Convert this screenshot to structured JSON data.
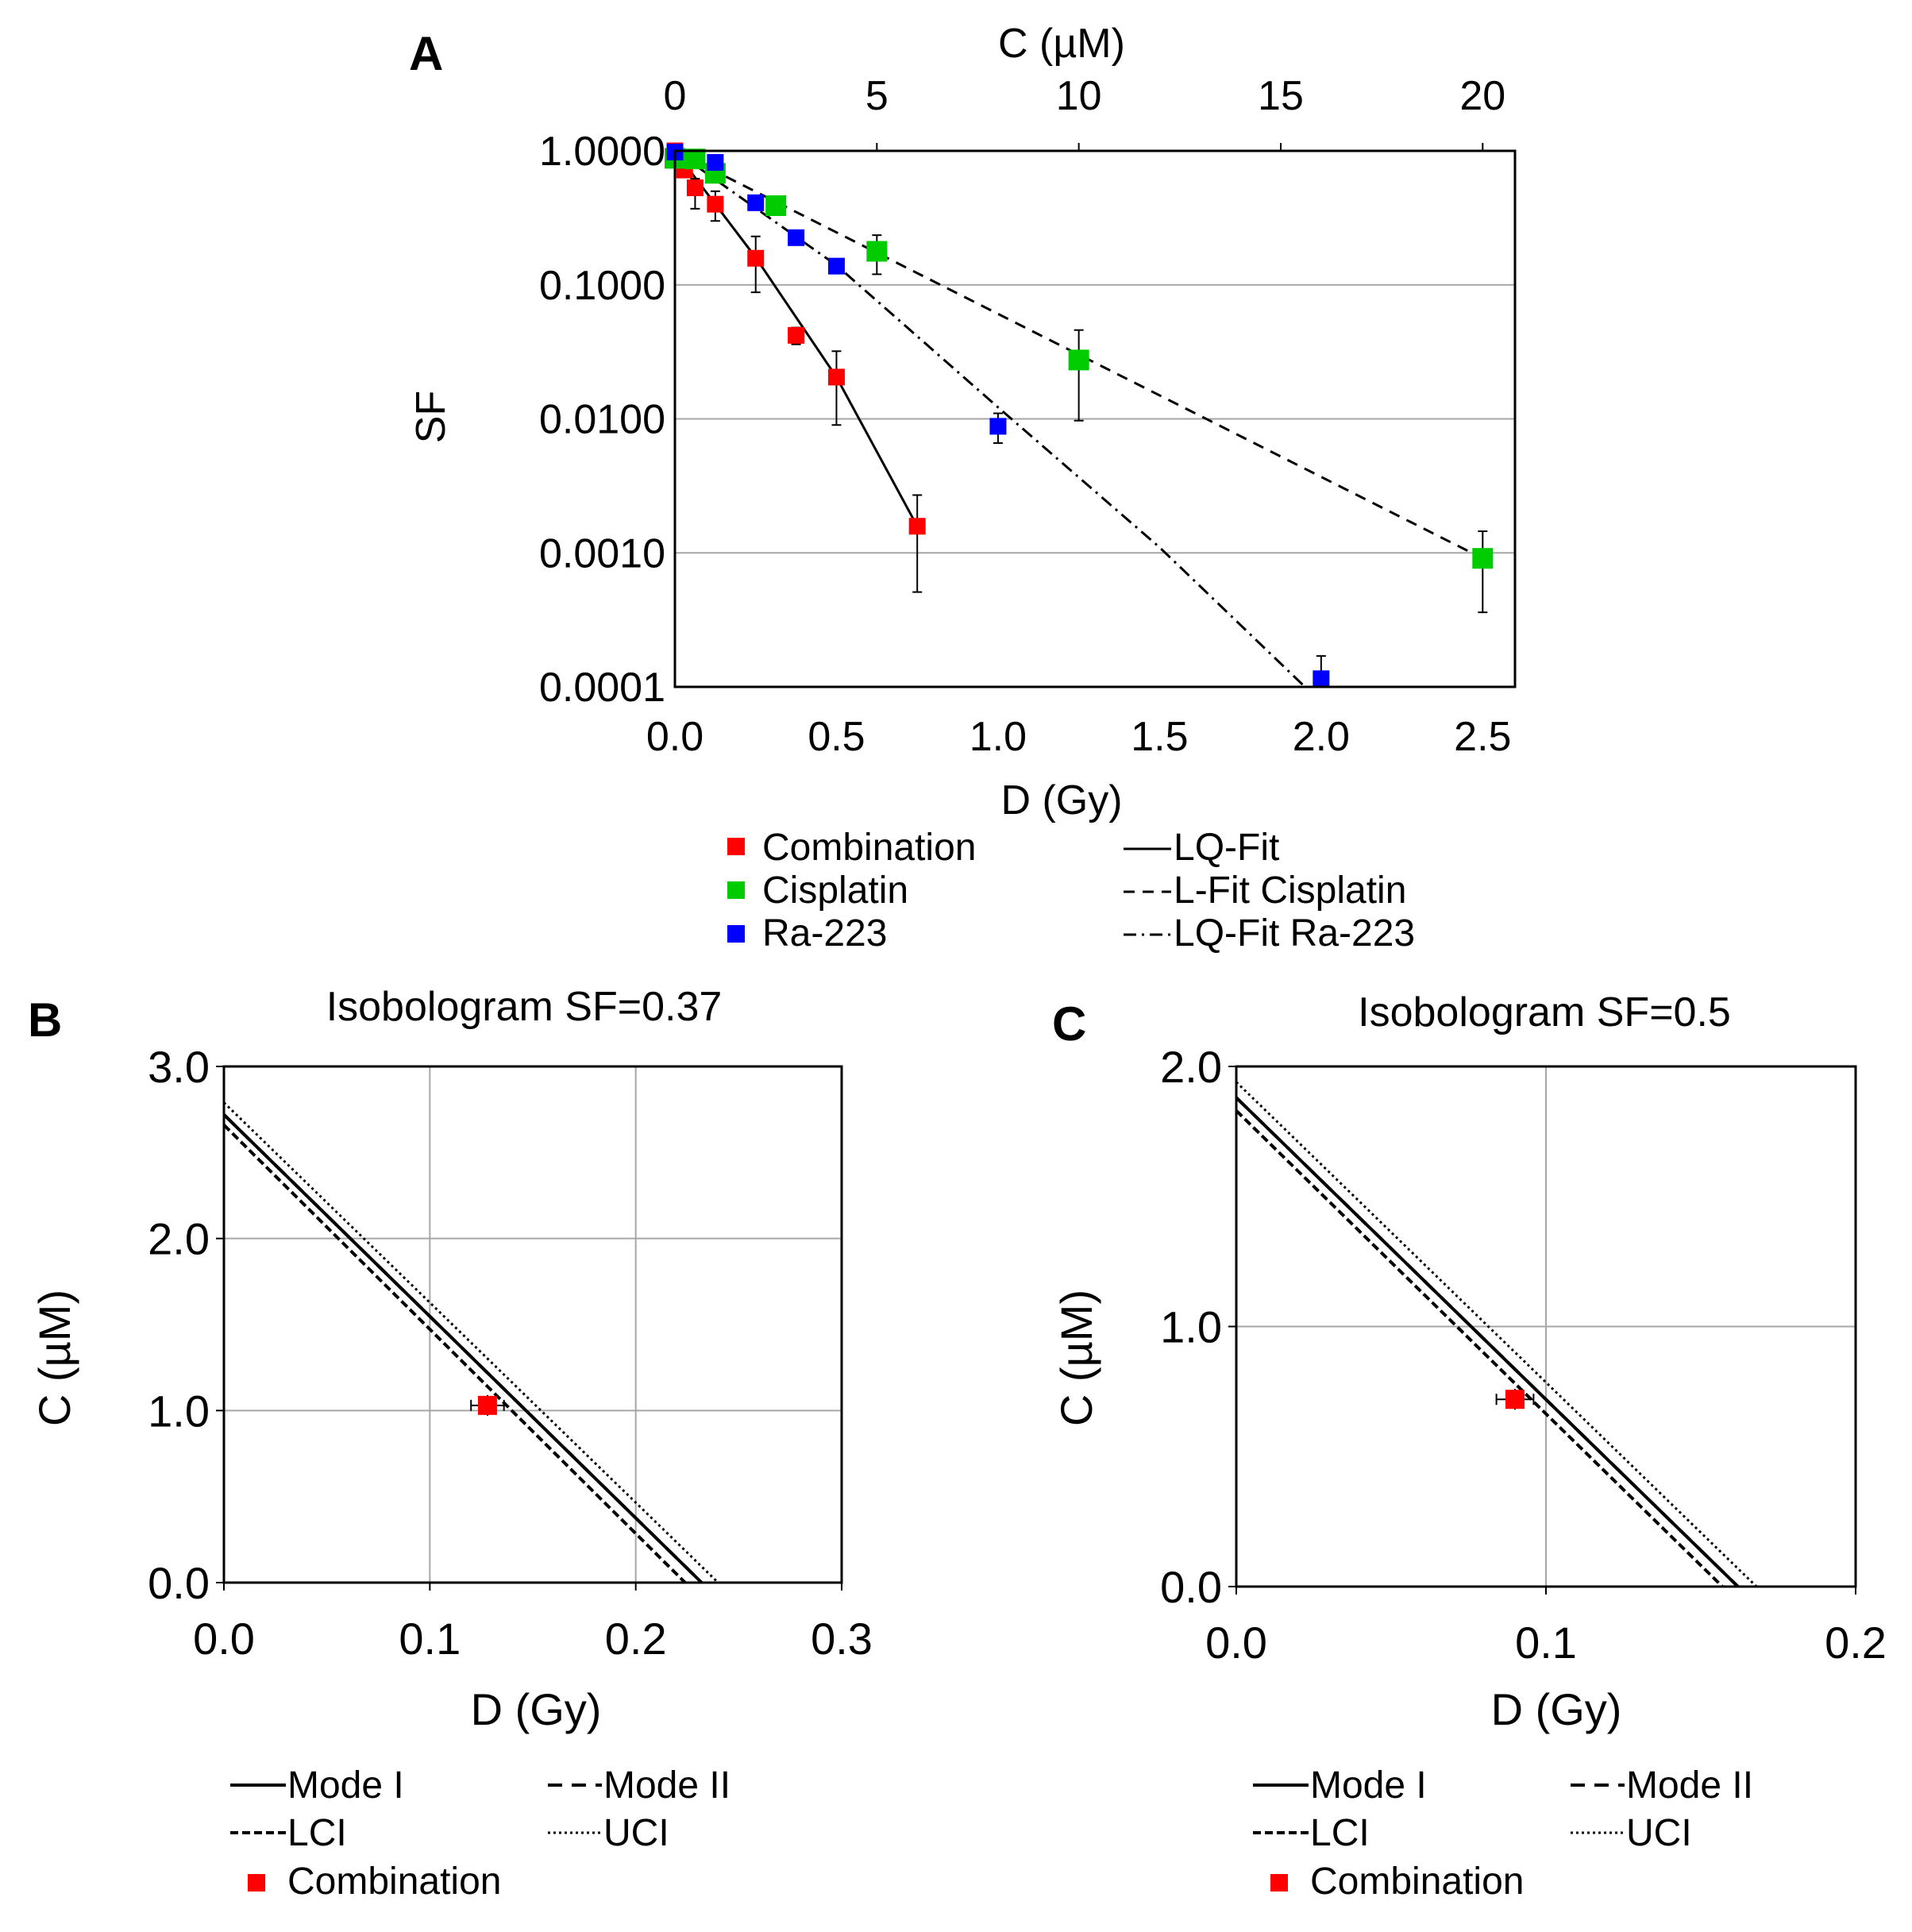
{
  "colors": {
    "combination": "#ff0000",
    "cisplatin": "#00cc00",
    "ra223": "#0000ff",
    "grid": "#a6a6a6",
    "axis": "#000000"
  },
  "chart_data": [
    {
      "panel": "A",
      "type": "scatter",
      "title": "",
      "xlabel": "D (Gy)",
      "x2label": "C (µM)",
      "ylabel": "SF",
      "yscale": "log",
      "xlim": [
        0,
        2.6
      ],
      "x2lim": [
        0,
        20.8
      ],
      "ylim": [
        0.0001,
        1
      ],
      "xticks": [
        "0.0",
        "0.5",
        "1.0",
        "1.5",
        "2.0",
        "2.5"
      ],
      "xtick_values": [
        0,
        0.5,
        1.0,
        1.5,
        2.0,
        2.5
      ],
      "x2ticks": [
        "0",
        "5",
        "10",
        "15",
        "20"
      ],
      "x2tick_values": [
        0,
        5,
        10,
        15,
        20
      ],
      "yticks": [
        "1.0000",
        "0.1000",
        "0.0100",
        "0.0010",
        "0.0001"
      ],
      "ytick_values": [
        1,
        0.1,
        0.01,
        0.001,
        0.0001
      ],
      "grid": true,
      "series": [
        {
          "name": "Combination",
          "axis": "bottom",
          "color_key": "combination",
          "points": [
            {
              "x": 0,
              "y": 1.0,
              "lo": 1.0,
              "hi": 1.0
            },
            {
              "x": 0.03,
              "y": 0.72,
              "lo": 0.68,
              "hi": 0.76
            },
            {
              "x": 0.0625,
              "y": 0.53,
              "lo": 0.37,
              "hi": 0.62
            },
            {
              "x": 0.125,
              "y": 0.4,
              "lo": 0.3,
              "hi": 0.5
            },
            {
              "x": 0.25,
              "y": 0.158,
              "lo": 0.088,
              "hi": 0.23
            },
            {
              "x": 0.375,
              "y": 0.042,
              "lo": 0.036,
              "hi": 0.048
            },
            {
              "x": 0.5,
              "y": 0.0205,
              "lo": 0.009,
              "hi": 0.032
            },
            {
              "x": 0.75,
              "y": 0.00158,
              "lo": 0.00051,
              "hi": 0.0027
            }
          ]
        },
        {
          "name": "Cisplatin",
          "axis": "top",
          "color_key": "cisplatin",
          "points": [
            {
              "x": 0,
              "y": 0.88,
              "lo": 0.88,
              "hi": 0.88
            },
            {
              "x": 0.5,
              "y": 0.87,
              "lo": 0.85,
              "hi": 0.89
            },
            {
              "x": 1.0,
              "y": 0.68,
              "lo": 0.63,
              "hi": 0.73
            },
            {
              "x": 2.5,
              "y": 0.39,
              "lo": 0.37,
              "hi": 0.42
            },
            {
              "x": 5.0,
              "y": 0.178,
              "lo": 0.12,
              "hi": 0.235
            },
            {
              "x": 10.0,
              "y": 0.0275,
              "lo": 0.0097,
              "hi": 0.046
            },
            {
              "x": 20.0,
              "y": 0.00091,
              "lo": 0.00036,
              "hi": 0.00145
            }
          ]
        },
        {
          "name": "Ra-223",
          "axis": "bottom",
          "color_key": "ra223",
          "points": [
            {
              "x": 0,
              "y": 0.98,
              "lo": 0.98,
              "hi": 0.98
            },
            {
              "x": 0.125,
              "y": 0.82,
              "lo": 0.78,
              "hi": 0.86
            },
            {
              "x": 0.25,
              "y": 0.41,
              "lo": 0.38,
              "hi": 0.44
            },
            {
              "x": 0.375,
              "y": 0.225,
              "lo": 0.21,
              "hi": 0.24
            },
            {
              "x": 0.5,
              "y": 0.138,
              "lo": 0.13,
              "hi": 0.146
            },
            {
              "x": 1.0,
              "y": 0.0088,
              "lo": 0.0066,
              "hi": 0.011
            },
            {
              "x": 2.0,
              "y": 0.000115,
              "lo": 0.0001,
              "hi": 0.00017
            }
          ]
        }
      ],
      "fits": [
        {
          "name": "LQ-Fit",
          "style": "solid",
          "axis": "bottom",
          "x": [
            0,
            0.25,
            0.5,
            0.75
          ],
          "y": [
            1.0,
            0.16,
            0.0205,
            0.00158
          ]
        },
        {
          "name": "L-Fit Cisplatin",
          "style": "dashed",
          "axis": "top",
          "x": [
            0,
            20
          ],
          "y": [
            1.0,
            0.00091
          ]
        },
        {
          "name": "LQ-Fit Ra-223",
          "style": "dashdot",
          "axis": "bottom",
          "x": [
            0,
            0.5,
            1.0,
            1.5,
            1.95
          ],
          "y": [
            1.0,
            0.14,
            0.0122,
            0.0011,
            0.0001
          ]
        }
      ],
      "legend": {
        "markers": [
          {
            "label": "Combination",
            "color_key": "combination"
          },
          {
            "label": "Cisplatin",
            "color_key": "cisplatin"
          },
          {
            "label": "Ra-223",
            "color_key": "ra223"
          }
        ],
        "lines": [
          {
            "label": "LQ-Fit",
            "style": "solid"
          },
          {
            "label": "L-Fit Cisplatin",
            "style": "dashed"
          },
          {
            "label": "LQ-Fit Ra-223",
            "style": "dashdot"
          }
        ]
      }
    },
    {
      "panel": "B",
      "type": "line",
      "title": "Isobologram SF=0.37",
      "xlabel": "D (Gy)",
      "ylabel": "C (µM)",
      "xlim": [
        0,
        0.3
      ],
      "ylim": [
        0,
        3.0
      ],
      "xticks": [
        "0.0",
        "0.1",
        "0.2",
        "0.3"
      ],
      "xtick_values": [
        0,
        0.1,
        0.2,
        0.3
      ],
      "yticks": [
        "0.0",
        "1.0",
        "2.0",
        "3.0"
      ],
      "ytick_values": [
        0,
        1.0,
        2.0,
        3.0
      ],
      "grid": true,
      "series": [
        {
          "name": "Mode I",
          "style": "solid",
          "x": [
            0,
            0.232
          ],
          "y": [
            2.72,
            0
          ]
        },
        {
          "name": "Mode II",
          "style": "dashed",
          "x": [
            0,
            0.232
          ],
          "y": [
            2.72,
            0
          ]
        },
        {
          "name": "LCI",
          "style": "dashed",
          "x": [
            0,
            0.224
          ],
          "y": [
            2.66,
            0
          ]
        },
        {
          "name": "UCI",
          "style": "dotted",
          "x": [
            0,
            0.24
          ],
          "y": [
            2.79,
            0
          ]
        }
      ],
      "points": [
        {
          "name": "Combination",
          "x": 0.128,
          "y": 1.03,
          "xerr": 0.008,
          "yerr": 0.06
        }
      ],
      "legend": {
        "items": [
          {
            "label": "Mode I",
            "style": "solid"
          },
          {
            "label": "Mode II",
            "style": "dashed"
          },
          {
            "label": "LCI",
            "style": "dashed"
          },
          {
            "label": "UCI",
            "style": "dotted"
          },
          {
            "label": "Combination",
            "style": "marker"
          }
        ]
      }
    },
    {
      "panel": "C",
      "type": "line",
      "title": "Isobologram SF=0.5",
      "xlabel": "D (Gy)",
      "ylabel": "C (µM)",
      "xlim": [
        0,
        0.2
      ],
      "ylim": [
        0,
        2.0
      ],
      "xticks": [
        "0.0",
        "0.1",
        "0.2"
      ],
      "xtick_values": [
        0,
        0.1,
        0.2
      ],
      "yticks": [
        "0.0",
        "1.0",
        "2.0"
      ],
      "ytick_values": [
        0,
        1.0,
        2.0
      ],
      "grid": true,
      "series": [
        {
          "name": "Mode I",
          "style": "solid",
          "x": [
            0,
            0.162
          ],
          "y": [
            1.88,
            0
          ]
        },
        {
          "name": "Mode II",
          "style": "dashed",
          "x": [
            0,
            0.162
          ],
          "y": [
            1.88,
            0
          ]
        },
        {
          "name": "LCI",
          "style": "dashed",
          "x": [
            0,
            0.157
          ],
          "y": [
            1.83,
            0
          ]
        },
        {
          "name": "UCI",
          "style": "dotted",
          "x": [
            0,
            0.168
          ],
          "y": [
            1.94,
            0
          ]
        }
      ],
      "points": [
        {
          "name": "Combination",
          "x": 0.09,
          "y": 0.72,
          "xerr": 0.006,
          "yerr": 0.04
        }
      ],
      "legend": {
        "items": [
          {
            "label": "Mode I",
            "style": "solid"
          },
          {
            "label": "Mode II",
            "style": "dashed"
          },
          {
            "label": "LCI",
            "style": "dashed"
          },
          {
            "label": "UCI",
            "style": "dotted"
          },
          {
            "label": "Combination",
            "style": "marker"
          }
        ]
      }
    }
  ]
}
